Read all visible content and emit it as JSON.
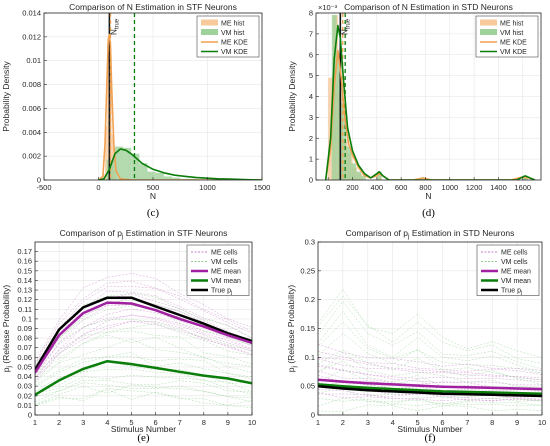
{
  "chart_data": [
    {
      "id": "c",
      "type": "histogram",
      "panel_label": "(c)",
      "title": "Comparison of N Estimation in STF Neurons",
      "xlabel": "N",
      "ylabel": "Probability Density",
      "xlim": [
        -500,
        1500
      ],
      "ylim": [
        0,
        0.014
      ],
      "xticks": [
        -500,
        0,
        500,
        1000,
        1500
      ],
      "yticks": [
        0,
        0.002,
        0.004,
        0.006,
        0.008,
        0.01,
        0.012,
        0.014
      ],
      "xtick_labels": [
        "-500",
        "0",
        "500",
        "1000",
        "1500"
      ],
      "ytick_labels": [
        "0",
        "0.002",
        "0.004",
        "0.006",
        "0.008",
        "0.01",
        "0.012",
        "0.014"
      ],
      "true_line": {
        "x": 100,
        "label_main": "N",
        "label_sub": "true"
      },
      "legend_position": "top-right",
      "series": [
        {
          "name": "ME hist",
          "kind": "hist",
          "color": "#f7c99b",
          "bins": [
            [
              40,
              60,
              0.0005
            ],
            [
              60,
              80,
              0.0045
            ],
            [
              80,
              100,
              0.0115
            ],
            [
              100,
              120,
              0.0105
            ],
            [
              120,
              140,
              0.0038
            ],
            [
              140,
              160,
              0.0008
            ]
          ]
        },
        {
          "name": "VM hist",
          "kind": "hist",
          "color": "#9fd19a",
          "bins": [
            [
              75,
              150,
              0.0017
            ],
            [
              150,
              225,
              0.0028
            ],
            [
              225,
              300,
              0.0027
            ],
            [
              300,
              375,
              0.0022
            ],
            [
              375,
              450,
              0.0014
            ],
            [
              450,
              525,
              0.0007
            ],
            [
              525,
              600,
              0.0006
            ],
            [
              600,
              675,
              0.0003
            ],
            [
              675,
              750,
              0.0002
            ],
            [
              750,
              825,
              0.0001
            ],
            [
              825,
              900,
              0.0001
            ]
          ]
        },
        {
          "name": "ME KDE",
          "kind": "line",
          "color": "#f0a050",
          "x": [
            0,
            40,
            60,
            80,
            90,
            100,
            110,
            120,
            140,
            160,
            200,
            300,
            1500
          ],
          "y": [
            0,
            0.0003,
            0.003,
            0.009,
            0.0118,
            0.0122,
            0.0112,
            0.008,
            0.003,
            0.0008,
            0.0001,
            0,
            0
          ]
        },
        {
          "name": "VM KDE",
          "kind": "line",
          "color": "#0a7d0a",
          "x": [
            0,
            50,
            100,
            150,
            200,
            250,
            300,
            350,
            400,
            500,
            600,
            700,
            800,
            900,
            1000,
            1100,
            1200,
            1300,
            1400,
            1500
          ],
          "y": [
            0,
            0.0001,
            0.0009,
            0.0022,
            0.0026,
            0.0025,
            0.0022,
            0.0018,
            0.0014,
            0.0009,
            0.0006,
            0.0004,
            0.0003,
            0.0002,
            0.00015,
            0.0001,
            8e-05,
            5e-05,
            2e-05,
            0
          ]
        }
      ],
      "mean_lines": [
        {
          "x": 110,
          "color": "#f0a050"
        },
        {
          "x": 330,
          "color": "#0a7d0a"
        }
      ]
    },
    {
      "id": "d",
      "type": "histogram",
      "panel_label": "(d)",
      "title": "Comparison of N Estimation in STD Neurons",
      "xlabel": "N",
      "ylabel": "Probability Density",
      "y_exponent_label": "×10⁻³",
      "xlim": [
        -100,
        1750
      ],
      "ylim": [
        0,
        0.008
      ],
      "xticks": [
        0,
        200,
        400,
        600,
        800,
        1000,
        1200,
        1400,
        1600
      ],
      "yticks": [
        0,
        0.001,
        0.002,
        0.003,
        0.004,
        0.005,
        0.006,
        0.007,
        0.008
      ],
      "xtick_labels": [
        "0",
        "200",
        "400",
        "600",
        "800",
        "1000",
        "1200",
        "1400",
        "1600"
      ],
      "ytick_labels": [
        "0",
        "1",
        "2",
        "3",
        "4",
        "5",
        "6",
        "7",
        "8"
      ],
      "true_line": {
        "x": 100,
        "label_main": "N",
        "label_sub": "true"
      },
      "legend_position": "top-right",
      "series": [
        {
          "name": "ME hist",
          "kind": "hist",
          "color": "#f7c99b",
          "bins": [
            [
              0,
              40,
              0.0049
            ],
            [
              40,
              80,
              0.0079
            ],
            [
              80,
              120,
              0.0042
            ],
            [
              120,
              160,
              0.0019
            ],
            [
              160,
              200,
              0.0013
            ],
            [
              200,
              240,
              0.0006
            ],
            [
              240,
              280,
              0.0003
            ],
            [
              400,
              440,
              0.0002
            ],
            [
              760,
              800,
              0.0001
            ],
            [
              1600,
              1640,
              0.0001
            ]
          ]
        },
        {
          "name": "VM hist",
          "kind": "hist",
          "color": "#9fd19a",
          "bins": [
            [
              30,
              70,
              0.0079
            ],
            [
              70,
              110,
              0.0061
            ],
            [
              110,
              150,
              0.0037
            ],
            [
              150,
              190,
              0.0016
            ],
            [
              190,
              230,
              0.0008
            ],
            [
              230,
              270,
              0.0004
            ],
            [
              270,
              310,
              0.0002
            ],
            [
              400,
              440,
              0.0004
            ],
            [
              1600,
              1640,
              0.0002
            ]
          ]
        },
        {
          "name": "ME KDE",
          "kind": "line",
          "color": "#f0a050",
          "x": [
            -20,
            20,
            50,
            80,
            110,
            140,
            170,
            200,
            250,
            300,
            350,
            400,
            420,
            450,
            500,
            700,
            780,
            850,
            1500,
            1600,
            1650,
            1700
          ],
          "y": [
            0,
            0.0015,
            0.0045,
            0.0062,
            0.0048,
            0.0028,
            0.0017,
            0.0012,
            0.0006,
            0.0002,
            0.0001,
            0.0002,
            0.0003,
            0.0002,
            0,
            0,
            0.0001,
            0,
            0,
            0.00015,
            0.0001,
            0
          ]
        },
        {
          "name": "VM KDE",
          "kind": "line",
          "color": "#0a7d0a",
          "x": [
            -20,
            20,
            50,
            80,
            100,
            130,
            160,
            200,
            250,
            300,
            350,
            400,
            420,
            450,
            500,
            1550,
            1620,
            1700
          ],
          "y": [
            0,
            0.002,
            0.0058,
            0.0074,
            0.0068,
            0.0045,
            0.0025,
            0.0014,
            0.0007,
            0.0003,
            0.0001,
            0.0003,
            0.0004,
            0.0002,
            0,
            0,
            0.0002,
            0
          ]
        }
      ],
      "mean_lines": [
        {
          "x": 120,
          "color": "#f0a050"
        },
        {
          "x": 140,
          "color": "#0a7d0a"
        }
      ]
    },
    {
      "id": "e",
      "type": "line",
      "panel_label": "(e)",
      "title": "Comparison of p",
      "title_sub": "j",
      "title_rest": " Estimation in STF Neurons",
      "xlabel": "Stimulus Number",
      "ylabel_main": "p",
      "ylabel_sub": "j",
      "ylabel_rest": " (Release Probability)",
      "xlim": [
        1,
        10
      ],
      "ylim": [
        0,
        0.18
      ],
      "xticks": [
        1,
        2,
        3,
        4,
        5,
        6,
        7,
        8,
        9,
        10
      ],
      "yticks": [
        0,
        0.01,
        0.02,
        0.03,
        0.04,
        0.05,
        0.06,
        0.07,
        0.08,
        0.09,
        0.1,
        0.11,
        0.12,
        0.13,
        0.14,
        0.15,
        0.16,
        0.17
      ],
      "xtick_labels": [
        "1",
        "2",
        "3",
        "4",
        "5",
        "6",
        "7",
        "8",
        "9",
        "10"
      ],
      "ytick_labels": [
        "0",
        "0.01",
        "0.02",
        "0.03",
        "0.04",
        "0.05",
        "0.06",
        "0.07",
        "0.08",
        "0.09",
        "0.1",
        "0.11",
        "0.12",
        "0.13",
        "0.14",
        "0.15",
        "0.16",
        "0.17"
      ],
      "legend_position": "top-right",
      "legend": [
        {
          "name": "ME cells",
          "color": "#c77dc7",
          "dashed": true,
          "width": 1
        },
        {
          "name": "VM cells",
          "color": "#8fcf8f",
          "dashed": true,
          "width": 1
        },
        {
          "name": "ME mean",
          "color": "#a020a0",
          "dashed": false,
          "width": 2.5
        },
        {
          "name": "VM mean",
          "color": "#0a7d0a",
          "dashed": false,
          "width": 2.5
        },
        {
          "name": "True p",
          "sub": "j",
          "color": "#000000",
          "dashed": false,
          "width": 2.5
        }
      ],
      "cell_bands": [
        {
          "color": "#c77dc7",
          "lower": [
            0.035,
            0.062,
            0.08,
            0.092,
            0.096,
            0.094,
            0.088,
            0.079,
            0.07,
            0.062
          ],
          "upper": [
            0.055,
            0.1,
            0.13,
            0.145,
            0.148,
            0.14,
            0.128,
            0.115,
            0.102,
            0.09
          ],
          "count": 12
        },
        {
          "color": "#8fcf8f",
          "lower": [
            0.01,
            0.015,
            0.02,
            0.022,
            0.02,
            0.018,
            0.016,
            0.015,
            0.012,
            0.01
          ],
          "upper": [
            0.06,
            0.09,
            0.11,
            0.12,
            0.125,
            0.12,
            0.11,
            0.1,
            0.09,
            0.08
          ],
          "count": 18
        }
      ],
      "series": [
        {
          "name": "True pj",
          "color": "#000000",
          "width": 2.5,
          "x": [
            1,
            2,
            3,
            4,
            5,
            6,
            7,
            8,
            9,
            10
          ],
          "y": [
            0.047,
            0.089,
            0.112,
            0.122,
            0.122,
            0.113,
            0.104,
            0.095,
            0.085,
            0.077
          ]
        },
        {
          "name": "ME mean",
          "color": "#a020a0",
          "width": 2.5,
          "x": [
            1,
            2,
            3,
            4,
            5,
            6,
            7,
            8,
            9,
            10
          ],
          "y": [
            0.044,
            0.083,
            0.106,
            0.117,
            0.116,
            0.109,
            0.1,
            0.092,
            0.083,
            0.075
          ]
        },
        {
          "name": "VM mean",
          "color": "#0a7d0a",
          "width": 2.5,
          "x": [
            1,
            2,
            3,
            4,
            5,
            6,
            7,
            8,
            9,
            10
          ],
          "y": [
            0.021,
            0.036,
            0.048,
            0.056,
            0.053,
            0.049,
            0.045,
            0.041,
            0.038,
            0.033
          ]
        }
      ]
    },
    {
      "id": "f",
      "type": "line",
      "panel_label": "(f)",
      "title": "Comparison of p",
      "title_sub": "j",
      "title_rest": " Estimation in STD Neurons",
      "xlabel": "Stimulus Number",
      "ylabel_main": "p",
      "ylabel_sub": "j",
      "ylabel_rest": " (Release Probability)",
      "xlim": [
        1,
        10
      ],
      "ylim": [
        0,
        0.3
      ],
      "xticks": [
        1,
        2,
        3,
        4,
        5,
        6,
        7,
        8,
        9,
        10
      ],
      "yticks": [
        0,
        0.05,
        0.1,
        0.15,
        0.2,
        0.25,
        0.3
      ],
      "xtick_labels": [
        "1",
        "2",
        "3",
        "4",
        "5",
        "6",
        "7",
        "8",
        "9",
        "10"
      ],
      "ytick_labels": [
        "0",
        "0.05",
        "0.1",
        "0.15",
        "0.2",
        "0.25",
        "0.3"
      ],
      "legend_position": "top-right",
      "legend": [
        {
          "name": "ME cells",
          "color": "#c77dc7",
          "dashed": true,
          "width": 1
        },
        {
          "name": "VM cells",
          "color": "#8fcf8f",
          "dashed": true,
          "width": 1
        },
        {
          "name": "ME mean",
          "color": "#a020a0",
          "dashed": false,
          "width": 2.5
        },
        {
          "name": "VM mean",
          "color": "#0a7d0a",
          "dashed": false,
          "width": 2.5
        },
        {
          "name": "True p",
          "sub": "j",
          "color": "#000000",
          "dashed": false,
          "width": 2.5
        }
      ],
      "cell_bands": [
        {
          "color": "#c77dc7",
          "lower": [
            0.035,
            0.032,
            0.03,
            0.029,
            0.028,
            0.027,
            0.027,
            0.026,
            0.026,
            0.025
          ],
          "upper": [
            0.12,
            0.11,
            0.1,
            0.095,
            0.09,
            0.088,
            0.085,
            0.083,
            0.08,
            0.078
          ],
          "count": 14
        },
        {
          "color": "#8fcf8f",
          "lower": [
            0.015,
            0.014,
            0.013,
            0.012,
            0.012,
            0.011,
            0.011,
            0.01,
            0.01,
            0.01
          ],
          "upper": [
            0.16,
            0.22,
            0.16,
            0.14,
            0.17,
            0.13,
            0.12,
            0.13,
            0.11,
            0.1
          ],
          "count": 16
        }
      ],
      "series": [
        {
          "name": "ME mean",
          "color": "#a020a0",
          "width": 2.5,
          "x": [
            1,
            2,
            3,
            4,
            5,
            6,
            7,
            8,
            9,
            10
          ],
          "y": [
            0.061,
            0.058,
            0.055,
            0.053,
            0.051,
            0.049,
            0.048,
            0.047,
            0.046,
            0.045
          ]
        },
        {
          "name": "VM mean",
          "color": "#0a7d0a",
          "width": 2.5,
          "x": [
            1,
            2,
            3,
            4,
            5,
            6,
            7,
            8,
            9,
            10
          ],
          "y": [
            0.053,
            0.05,
            0.047,
            0.045,
            0.043,
            0.041,
            0.04,
            0.039,
            0.038,
            0.037
          ]
        },
        {
          "name": "True pj",
          "color": "#000000",
          "width": 2.5,
          "x": [
            1,
            2,
            3,
            4,
            5,
            6,
            7,
            8,
            9,
            10
          ],
          "y": [
            0.05,
            0.046,
            0.043,
            0.041,
            0.039,
            0.037,
            0.036,
            0.035,
            0.034,
            0.033
          ]
        }
      ]
    }
  ]
}
